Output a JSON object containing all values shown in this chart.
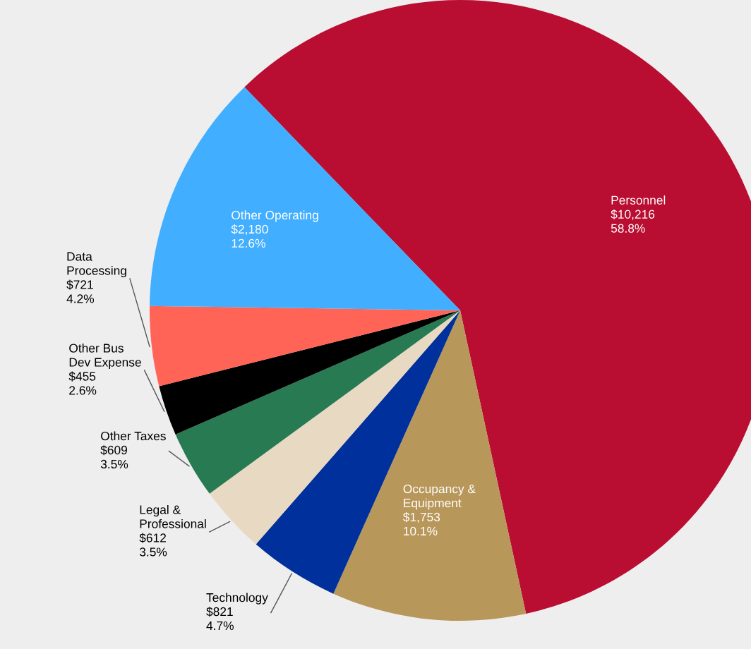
{
  "chart_data": {
    "type": "pie",
    "categories": [
      "Personnel",
      "Occupancy & Equipment",
      "Technology",
      "Legal & Professional",
      "Other Taxes",
      "Other Bus Dev Expense",
      "Data Processing",
      "Other Operating"
    ],
    "values": [
      10216,
      1753,
      821,
      612,
      609,
      455,
      721,
      2180
    ],
    "colors": [
      "#b90e31",
      "#b8975a",
      "#00309b",
      "#e8d9c3",
      "#277a52",
      "#000000",
      "#ff6456",
      "#42aeff"
    ],
    "value_labels": [
      "$10,216\n58.8%",
      "$1,753\n10.1%",
      "$821\n4.7%",
      "$612\n3.5%",
      "$609\n3.5%",
      "$455\n2.6%",
      "$721\n4.2%",
      "$2,180\n12.6%"
    ]
  }
}
